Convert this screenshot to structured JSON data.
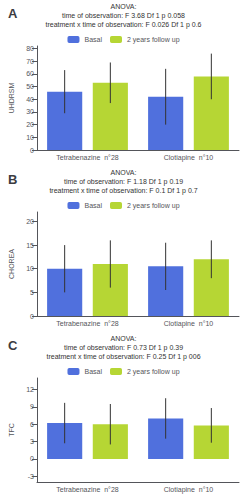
{
  "chart_data": [
    {
      "type": "bar",
      "title": "A",
      "ylabel": "UHDRSM",
      "annotations": [
        "ANOVA:",
        "time of observation: F 3.68 Df 1 p 0.058",
        "treatment x time of observation: F 0.026 Df 1 p 0.6"
      ],
      "categories": [
        "Tetrabenazine  n°28",
        "Clotiapine  n°10"
      ],
      "series": [
        {
          "name": "Basal",
          "values": [
            46,
            42
          ],
          "errors": [
            17,
            22
          ]
        },
        {
          "name": "2 years follow up",
          "values": [
            53,
            58
          ],
          "errors": [
            16,
            18
          ]
        }
      ],
      "ylim": [
        0,
        82
      ],
      "yticks": [
        0,
        10,
        20,
        30,
        40,
        50,
        60,
        70,
        80
      ],
      "grid": false,
      "legend": "top"
    },
    {
      "type": "bar",
      "title": "B",
      "ylabel": "CHOREA",
      "annotations": [
        "ANOVA:",
        "time of observation: F 1.18 Df 1 p 0.19",
        "treatment x time of observation: F 0.1 Df 1 p 0.7"
      ],
      "categories": [
        "Tetrabenazine  n°28",
        "Clotiapine  n°10"
      ],
      "series": [
        {
          "name": "Basal",
          "values": [
            10,
            10.5
          ],
          "errors": [
            5,
            5
          ]
        },
        {
          "name": "2 years follow up",
          "values": [
            11,
            12
          ],
          "errors": [
            5,
            4
          ]
        }
      ],
      "ylim": [
        0,
        22
      ],
      "yticks": [
        0,
        5,
        10,
        15,
        20
      ],
      "grid": false,
      "legend": "top"
    },
    {
      "type": "bar",
      "title": "C",
      "ylabel": "TFC",
      "annotations": [
        "ANOVA:",
        "time of observation: F 0.73 Df 1 p 0.39",
        "treatment x time of observation: F 0.25 Df 1 p 006"
      ],
      "categories": [
        "Tetrabenazine  n°28",
        "Clotiapine  n°10"
      ],
      "series": [
        {
          "name": "Basal",
          "values": [
            6.2,
            7.0
          ],
          "errors": [
            3.5,
            3.5
          ]
        },
        {
          "name": "2 years follow up",
          "values": [
            6.0,
            5.8
          ],
          "errors": [
            3.5,
            3.0
          ]
        }
      ],
      "ylim": [
        -4,
        14
      ],
      "yticks": [
        -3,
        0,
        3,
        6,
        9,
        12
      ],
      "grid": false,
      "legend": "top"
    }
  ]
}
